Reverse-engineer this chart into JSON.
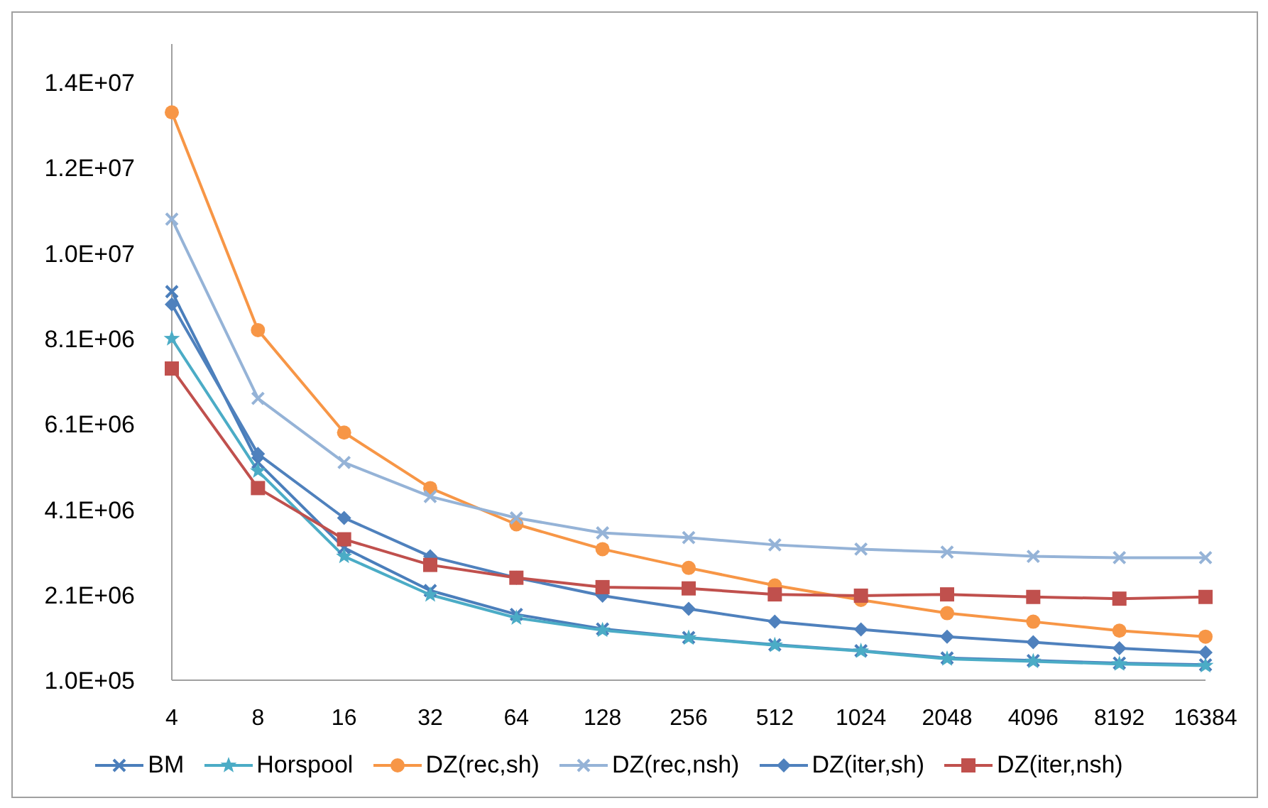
{
  "chart_data": {
    "type": "line",
    "categories": [
      "4",
      "8",
      "16",
      "32",
      "64",
      "128",
      "256",
      "512",
      "1024",
      "2048",
      "4096",
      "8192",
      "16384"
    ],
    "series": [
      {
        "name": "BM",
        "color": "#4a7ebb",
        "marker": "cross",
        "values": [
          9200000,
          5200000,
          3200000,
          2200000,
          1640000,
          1300000,
          1100000,
          930000,
          790000,
          620000,
          560000,
          500000,
          460000
        ]
      },
      {
        "name": "Horspool",
        "color": "#4bacc6",
        "marker": "star",
        "values": [
          8100000,
          5000000,
          3000000,
          2100000,
          1560000,
          1270000,
          1090000,
          920000,
          780000,
          600000,
          540000,
          480000,
          440000
        ]
      },
      {
        "name": "DZ(rec,sh)",
        "color": "#f79646",
        "marker": "circle",
        "values": [
          13400000,
          8300000,
          5900000,
          4600000,
          3750000,
          3170000,
          2730000,
          2320000,
          1980000,
          1670000,
          1470000,
          1260000,
          1120000
        ]
      },
      {
        "name": "DZ(rec,nsh)",
        "color": "#95b3d7",
        "marker": "cross",
        "values": [
          10900000,
          6700000,
          5200000,
          4400000,
          3900000,
          3550000,
          3440000,
          3270000,
          3170000,
          3100000,
          3000000,
          2970000,
          2970000
        ]
      },
      {
        "name": "DZ(iter,sh)",
        "color": "#4f81bd",
        "marker": "diamond",
        "values": [
          8900000,
          5400000,
          3900000,
          3000000,
          2500000,
          2080000,
          1770000,
          1470000,
          1290000,
          1120000,
          990000,
          850000,
          750000
        ]
      },
      {
        "name": "DZ(iter,nsh)",
        "color": "#c0504d",
        "marker": "square",
        "values": [
          7400000,
          4600000,
          3400000,
          2800000,
          2500000,
          2280000,
          2250000,
          2110000,
          2080000,
          2110000,
          2050000,
          2010000,
          2050000
        ]
      }
    ],
    "ylim": [
      100000,
      15000000
    ],
    "yticks": [
      {
        "value": 100000,
        "label": "1.0E+05"
      },
      {
        "value": 2100000,
        "label": "2.1E+06"
      },
      {
        "value": 4100000,
        "label": "4.1E+06"
      },
      {
        "value": 6100000,
        "label": "6.1E+06"
      },
      {
        "value": 8100000,
        "label": "8.1E+06"
      },
      {
        "value": 10100000,
        "label": "1.0E+07"
      },
      {
        "value": 12100000,
        "label": "1.2E+07"
      },
      {
        "value": 14100000,
        "label": "1.4E+07"
      }
    ],
    "grid": false,
    "legend": "bottom"
  }
}
